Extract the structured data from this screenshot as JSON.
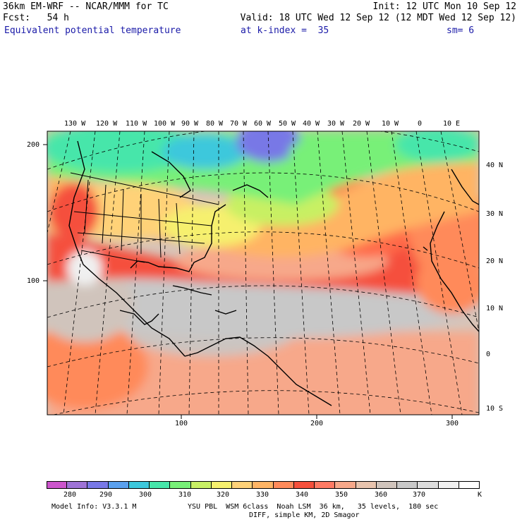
{
  "header": {
    "model": "36km EM-WRF -- NCAR/MMM for TC",
    "init": "Init: 12 UTC Mon 10 Sep 12",
    "fcst": "Fcst:   54 h",
    "valid": "Valid: 18 UTC Wed 12 Sep 12 (12 MDT Wed 12 Sep 12)",
    "field": "Equivalent potential temperature",
    "level": "at k-index =  35",
    "smooth": "sm= 6"
  },
  "map": {
    "top_lon_labels": [
      "130 W",
      "120 W",
      "110 W",
      "100 W",
      "90 W",
      "80 W",
      "70 W",
      "60 W",
      "50 W",
      "40 W",
      "30 W",
      "20 W",
      "10 W",
      "0",
      "10 E"
    ],
    "right_lat_labels": [
      "40 N",
      "30 N",
      "20 N",
      "10 N",
      "0",
      "10 S"
    ],
    "left_grid_labels": [
      "200",
      "100"
    ],
    "bottom_grid_labels": [
      "100",
      "200",
      "300"
    ]
  },
  "colorbar": {
    "colors": [
      "#cc55cc",
      "#9e73d6",
      "#7878e6",
      "#5aa0ee",
      "#3cc8dc",
      "#46e6aa",
      "#78f078",
      "#c8f064",
      "#f6f06e",
      "#ffd278",
      "#ffb464",
      "#ff8a5a",
      "#f5503c",
      "#ff7a64",
      "#f7a88a",
      "#e8c4ae",
      "#d0c4bc",
      "#c8c8c8",
      "#dcdcdc",
      "#f0f0f0",
      "#ffffff"
    ],
    "labels": [
      "280",
      "290",
      "300",
      "310",
      "320",
      "330",
      "340",
      "350",
      "360",
      "370"
    ],
    "unit": "K"
  },
  "footer": {
    "line1_left": "Model Info: V3.3.1 M",
    "line1_right": "YSU PBL  WSM 6class  Noah LSM  36 km,   35 levels,  180 sec",
    "line2": "DIFF, simple KM, 2D Smagor"
  }
}
